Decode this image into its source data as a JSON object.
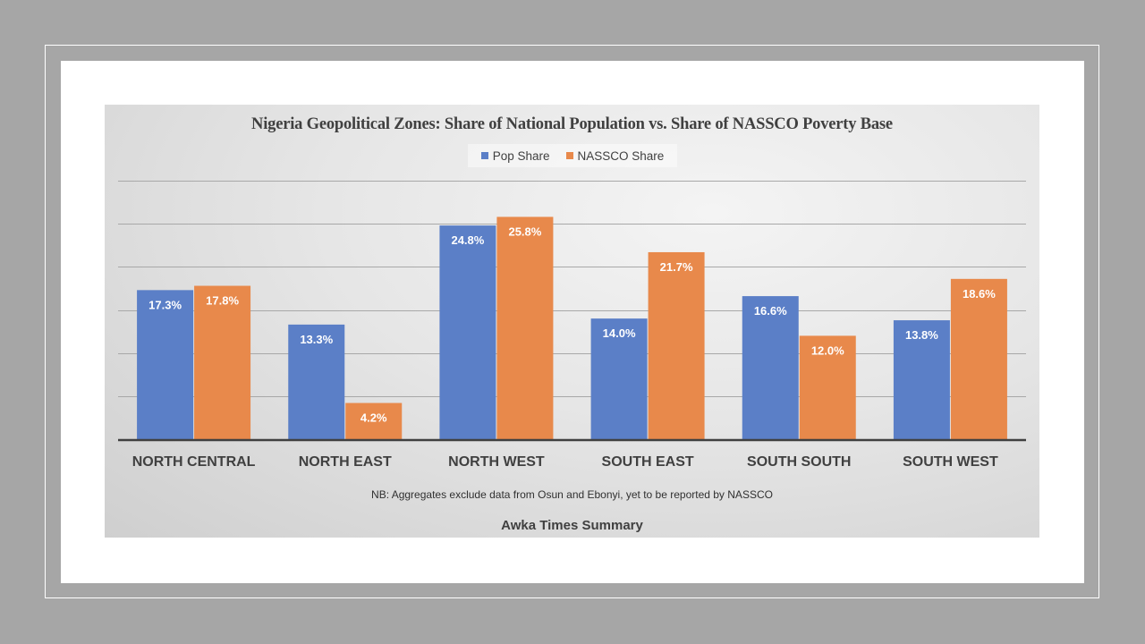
{
  "colors": {
    "pop_share": "#5b7fc7",
    "nassco_share": "#e8894b",
    "gridline": "#a8a8a8",
    "axis": "#404040",
    "label_text": "#404040",
    "data_label": "#ffffff"
  },
  "chart_data": {
    "type": "bar",
    "title": "Nigeria Geopolitical Zones: Share of National Population vs. Share of NASSCO Poverty Base",
    "xlabel": "",
    "ylabel": "",
    "ylim": [
      0,
      30
    ],
    "ytick_step": 5,
    "grid": true,
    "y_axis_labels_shown": false,
    "legend_position": "top-center",
    "categories": [
      "NORTH CENTRAL",
      "NORTH EAST",
      "NORTH WEST",
      "SOUTH EAST",
      "SOUTH SOUTH",
      "SOUTH WEST"
    ],
    "series": [
      {
        "name": "Pop Share",
        "values": [
          17.3,
          13.3,
          24.8,
          14.0,
          16.6,
          13.8
        ],
        "labels": [
          "17.3%",
          "13.3%",
          "24.8%",
          "14.0%",
          "16.6%",
          "13.8%"
        ]
      },
      {
        "name": "NASSCO Share",
        "values": [
          17.8,
          4.2,
          25.8,
          21.7,
          12.0,
          18.6
        ],
        "labels": [
          "17.8%",
          "4.2%",
          "25.8%",
          "21.7%",
          "12.0%",
          "18.6%"
        ]
      }
    ],
    "annotations": [
      "NB: Aggregates exclude data from  Osun and Ebonyi, yet to be reported by NASSCO",
      "Awka Times Summary"
    ]
  }
}
